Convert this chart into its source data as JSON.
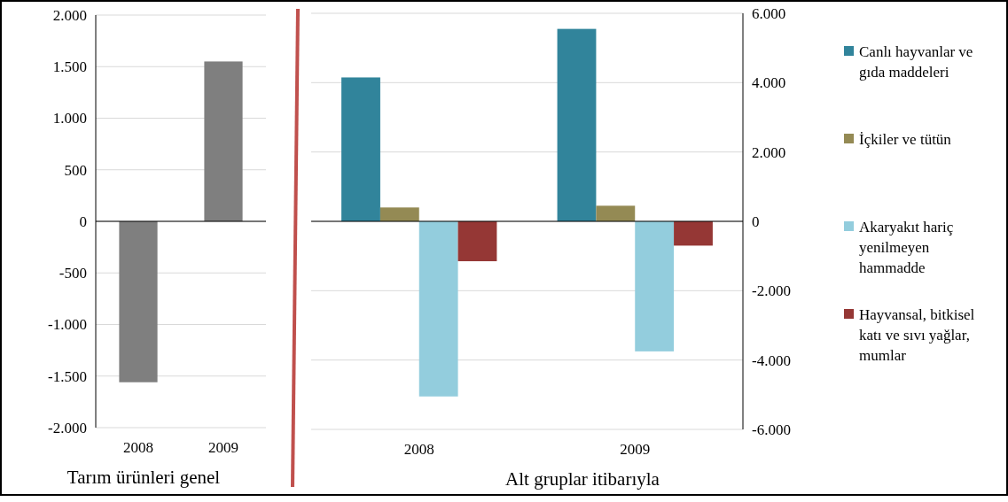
{
  "chart_data": [
    {
      "type": "bar",
      "xlabel": "Tarım ürünleri genel",
      "categories": [
        "2008",
        "2009"
      ],
      "values": [
        -1560,
        1550
      ],
      "color": "#7f7f7f",
      "ylim": [
        -2000,
        2000
      ],
      "yticks": [
        {
          "value": -2000,
          "label": "-2.000"
        },
        {
          "value": -1500,
          "label": "-1.500"
        },
        {
          "value": -1000,
          "label": "-1.000"
        },
        -500,
        0,
        500,
        {
          "value": 1000,
          "label": "1.000"
        },
        {
          "value": 1500,
          "label": "1.500"
        },
        {
          "value": 2000,
          "label": "2.000"
        }
      ],
      "grid": "y",
      "legend": false
    },
    {
      "type": "bar",
      "xlabel": "Alt gruplar itibarıyla",
      "categories": [
        "2008",
        "2009"
      ],
      "series": [
        {
          "name": "Canlı hayvanlar ve gıda maddeleri",
          "color": "#31849b",
          "values": [
            4150,
            5550
          ]
        },
        {
          "name": "İçkiler ve tütün",
          "color": "#948a54",
          "values": [
            400,
            450
          ]
        },
        {
          "name": "Akaryakıt hariç yenilmeyen hammadde",
          "color": "#93cddd",
          "values": [
            -5050,
            -3750
          ]
        },
        {
          "name": "Hayvansal, bitkisel katı ve sıvı yağlar, mumlar",
          "color": "#953735",
          "values": [
            -1150,
            -700
          ]
        }
      ],
      "ylim": [
        -6000,
        6000
      ],
      "yticks": [
        {
          "value": -6000,
          "label": "-6.000"
        },
        {
          "value": -4000,
          "label": "-4.000"
        },
        {
          "value": -2000,
          "label": "-2.000"
        },
        0,
        {
          "value": 2000,
          "label": "2.000"
        },
        {
          "value": 4000,
          "label": "4.000"
        },
        {
          "value": 6000,
          "label": "6.000"
        }
      ],
      "grid": "y",
      "legend": "right"
    }
  ]
}
